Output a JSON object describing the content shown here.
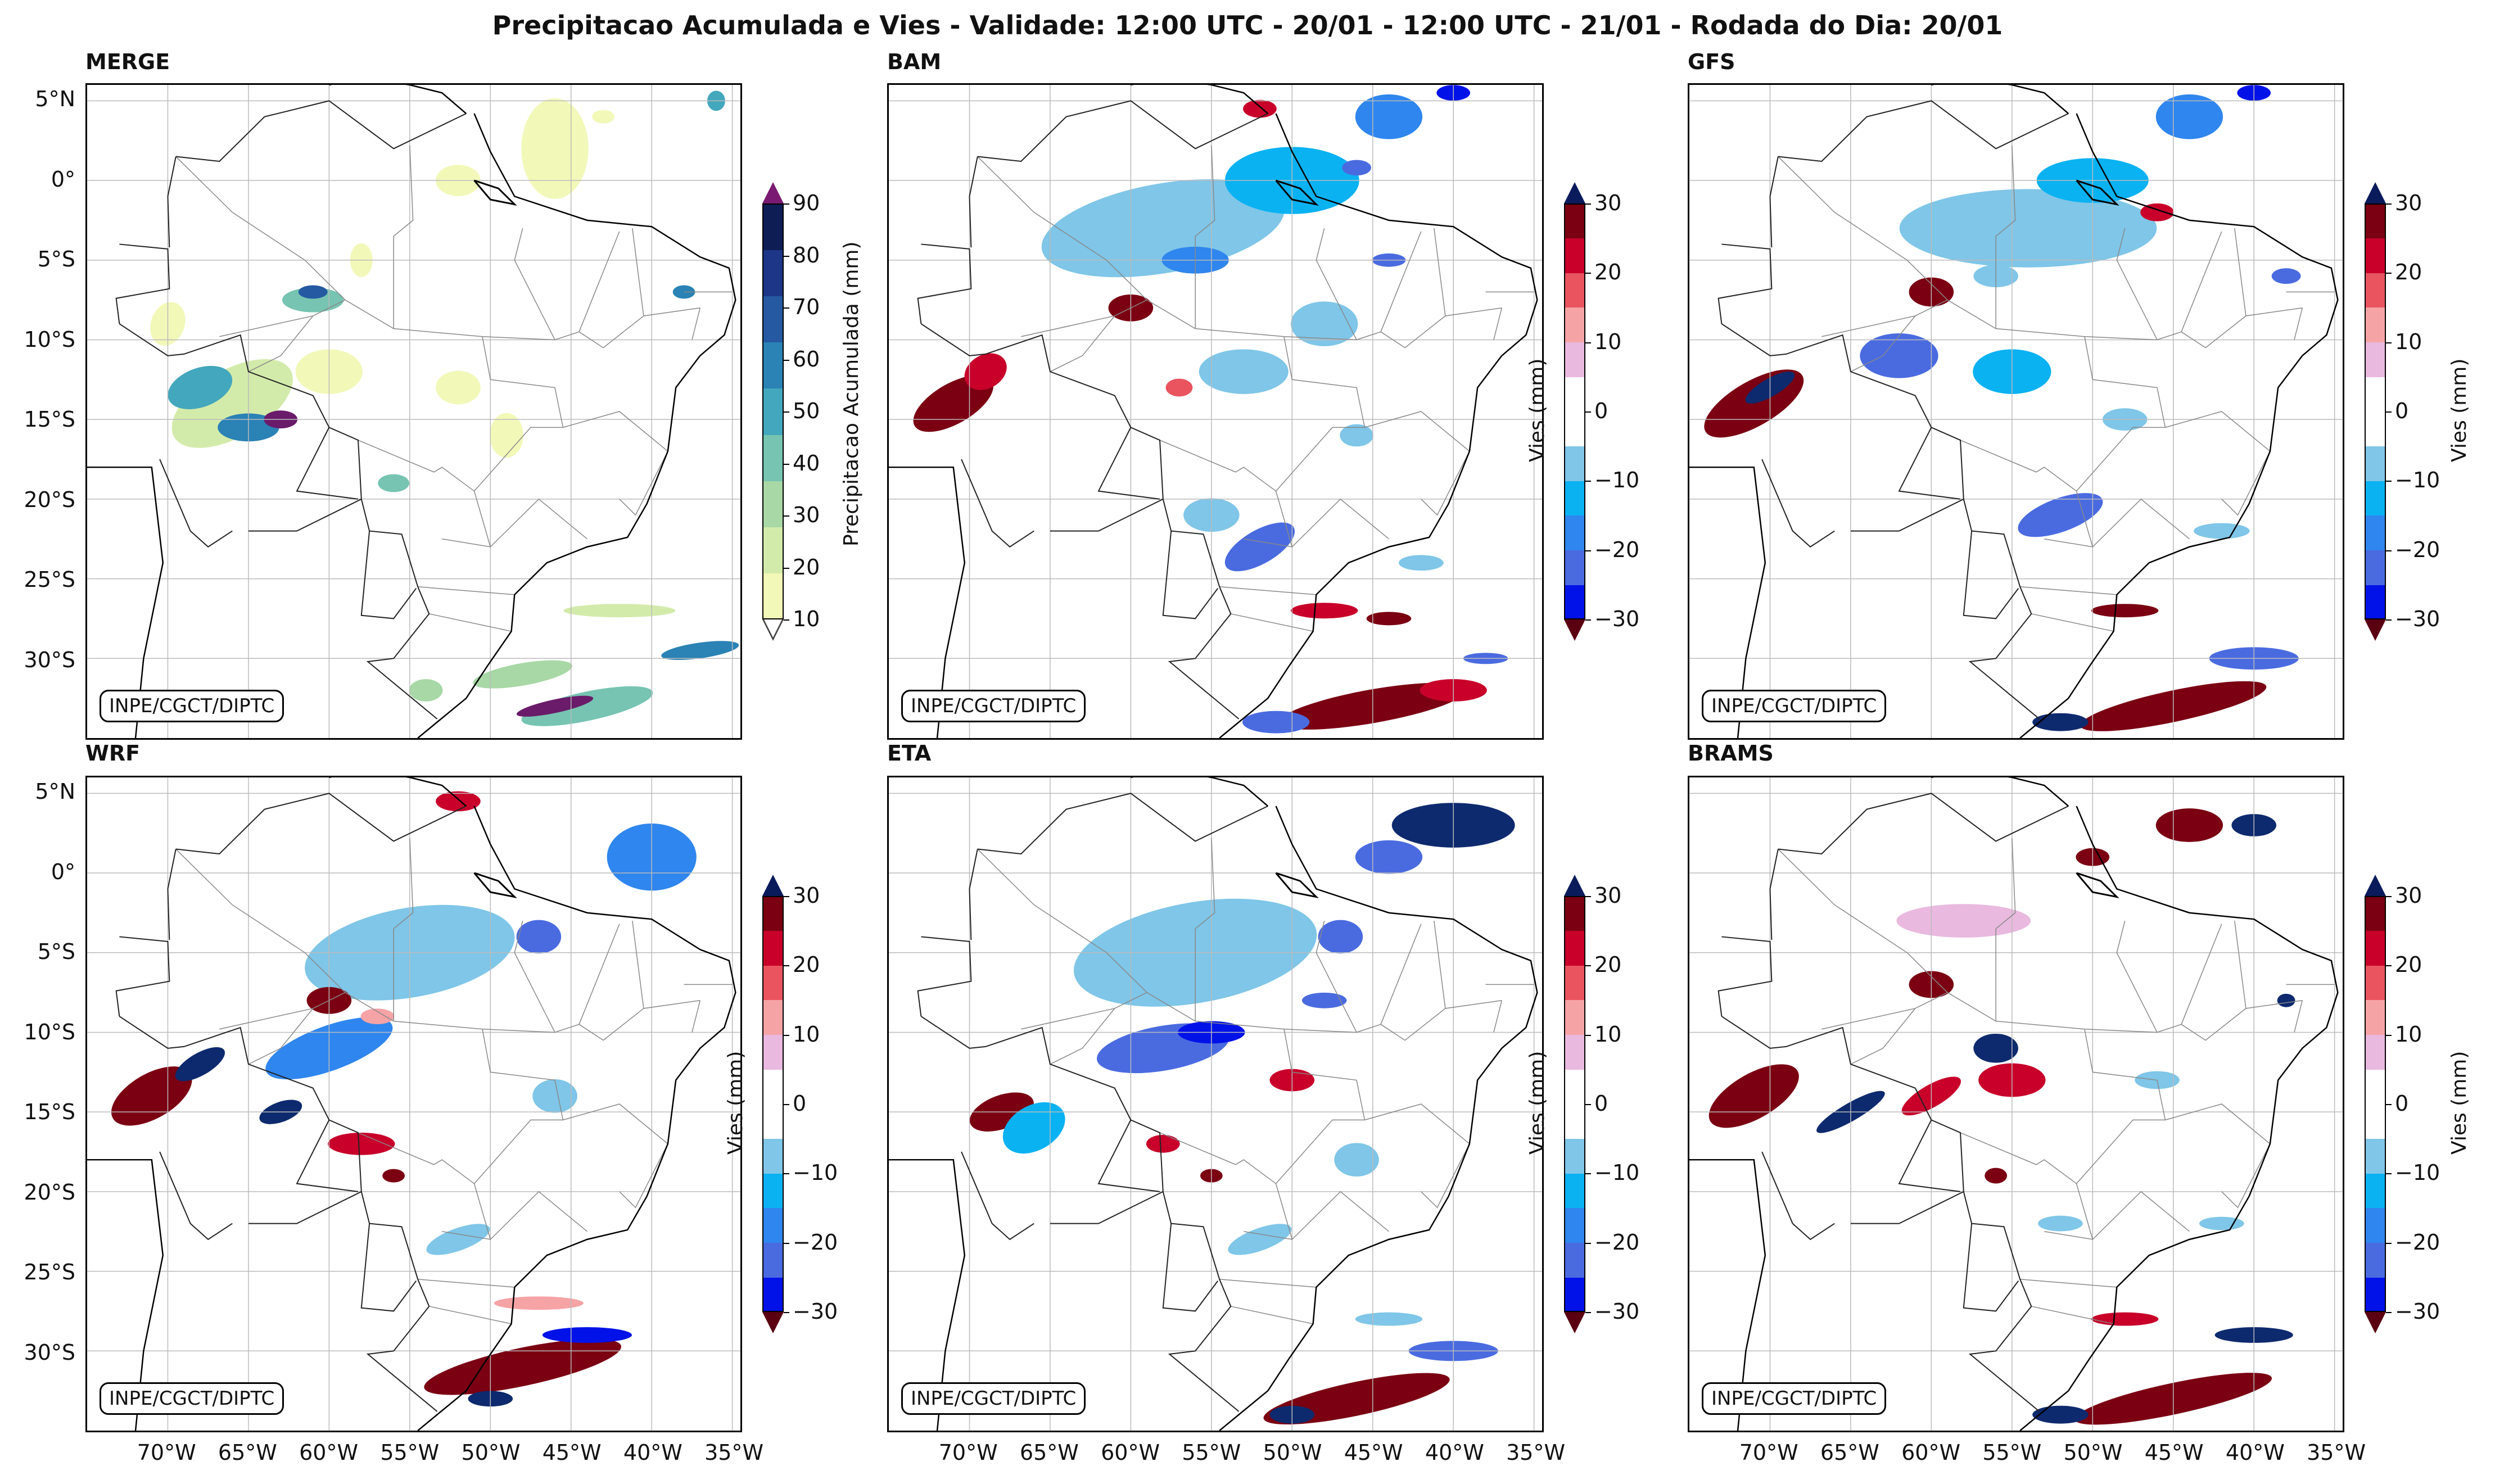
{
  "title": "Precipitacao Acumulada e Vies - Validade: 12:00 UTC - 20/01 - 12:00 UTC - 21/01 - Rodada do Dia: 20/01",
  "credit": "INPE/CGCT/DIPTC",
  "lat_ticks": [
    "5°N",
    "0°",
    "5°S",
    "10°S",
    "15°S",
    "20°S",
    "25°S",
    "30°S"
  ],
  "lon_ticks": [
    "70°W",
    "65°W",
    "60°W",
    "55°W",
    "50°W",
    "45°W",
    "40°W",
    "35°W"
  ],
  "colors": {
    "precip": [
      "#f2f8b8",
      "#d3ebaa",
      "#a7d8a5",
      "#76c4b1",
      "#43a7bd",
      "#2a82b5",
      "#2559a2",
      "#1d3688",
      "#0e1e55"
    ],
    "bias": [
      "#7a0012",
      "#c8002a",
      "#e9545f",
      "#f6a3a6",
      "#e9b9df",
      "#ffffff",
      "#ffffff",
      "#7fc6e8",
      "#0ab2f2",
      "#2f86ee",
      "#4a6be0",
      "#0012e8"
    ]
  },
  "panels": [
    {
      "id": "merge",
      "title": "MERGE",
      "type": "precip",
      "cbar_label": "Precipitacao Acumulada (mm)",
      "cbar_ticks": [
        "10",
        "20",
        "30",
        "40",
        "50",
        "60",
        "70",
        "80",
        "90"
      ]
    },
    {
      "id": "bam",
      "title": "BAM",
      "type": "bias",
      "cbar_label": "Vies (mm)",
      "cbar_ticks": [
        "−30",
        "−20",
        "−10",
        "0",
        "10",
        "20",
        "30"
      ]
    },
    {
      "id": "gfs",
      "title": "GFS",
      "type": "bias",
      "cbar_label": "Vies (mm)",
      "cbar_ticks": [
        "−30",
        "−20",
        "−10",
        "0",
        "10",
        "20",
        "30"
      ]
    },
    {
      "id": "wrf",
      "title": "WRF",
      "type": "bias",
      "cbar_label": "Vies (mm)",
      "cbar_ticks": [
        "−30",
        "−20",
        "−10",
        "0",
        "10",
        "20",
        "30"
      ]
    },
    {
      "id": "eta",
      "title": "ETA",
      "type": "bias",
      "cbar_label": "Vies (mm)",
      "cbar_ticks": [
        "−30",
        "−20",
        "−10",
        "0",
        "10",
        "20",
        "30"
      ]
    },
    {
      "id": "brams",
      "title": "BRAMS",
      "type": "bias",
      "cbar_label": "Vies (mm)",
      "cbar_ticks": [
        "−30",
        "−20",
        "−10",
        "0",
        "10",
        "20",
        "30"
      ]
    }
  ]
}
